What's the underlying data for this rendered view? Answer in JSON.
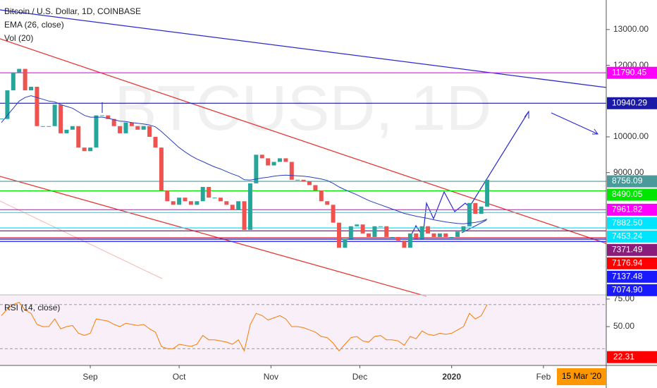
{
  "chart_data": [
    {
      "type": "candlestick",
      "title": "Bitcoin / U.S. Dollar, 1D, COINBASE",
      "watermark": "BTCUSD, 1D",
      "volume_label": "Vol (20)",
      "categories": [
        null,
        null,
        null,
        null,
        null,
        null,
        null,
        null,
        null,
        null,
        null,
        null,
        null,
        null,
        null,
        null,
        null,
        null,
        null,
        null,
        null,
        null,
        null,
        null,
        null,
        null,
        null,
        null,
        null,
        null,
        null,
        null,
        null,
        null,
        null,
        null,
        null,
        null,
        null,
        null,
        null,
        null,
        null,
        null,
        null,
        null,
        null,
        null,
        null,
        null,
        null,
        null,
        null,
        null,
        null,
        null,
        null,
        null,
        null,
        null,
        null,
        null,
        null,
        null,
        null,
        null,
        null,
        null,
        null,
        null,
        null,
        null,
        null,
        null,
        null,
        null,
        null,
        null,
        null,
        null,
        null,
        null,
        null
      ],
      "close": [
        10500,
        11300,
        11800,
        11900,
        11300,
        11400,
        10300,
        10300,
        10300,
        10900,
        10100,
        10200,
        10300,
        9700,
        9600,
        9700,
        10600,
        10600,
        10500,
        10300,
        10100,
        10400,
        10300,
        10200,
        10300,
        10000,
        9700,
        8500,
        8200,
        8100,
        8300,
        8200,
        8100,
        8200,
        8600,
        8300,
        8300,
        8200,
        8100,
        7950,
        8200,
        7400,
        8700,
        9500,
        9400,
        9200,
        9300,
        9400,
        9300,
        8800,
        8800,
        8750,
        8650,
        8500,
        8200,
        8100,
        7600,
        6900,
        7150,
        7500,
        7550,
        7300,
        7200,
        7500,
        7500,
        7200,
        7200,
        7100,
        6900,
        7300,
        7150,
        7500,
        7300,
        7200,
        7300,
        7200,
        7200,
        7350,
        7500,
        8150,
        7850,
        8050,
        8800
      ],
      "up_color": "#26a69a",
      "down_color": "#ef5350",
      "ema": {
        "name": "EMA (26, close)",
        "color": "#2a3fbf",
        "values": [
          10400,
          10600,
          10800,
          11000,
          11100,
          11150,
          11100,
          11050,
          11000,
          10980,
          10900,
          10850,
          10800,
          10700,
          10600,
          10550,
          10550,
          10550,
          10520,
          10480,
          10440,
          10430,
          10400,
          10380,
          10360,
          10330,
          10280,
          10150,
          10000,
          9850,
          9700,
          9580,
          9470,
          9380,
          9310,
          9230,
          9160,
          9100,
          9030,
          8960,
          8900,
          8800,
          8790,
          8820,
          8850,
          8870,
          8900,
          8920,
          8930,
          8920,
          8910,
          8900,
          8880,
          8850,
          8820,
          8780,
          8700,
          8600,
          8520,
          8450,
          8380,
          8300,
          8220,
          8160,
          8100,
          8040,
          7980,
          7920,
          7860,
          7820,
          7780,
          7750,
          7720,
          7680,
          7650,
          7620,
          7600,
          7580,
          7570,
          7590,
          7610,
          7640,
          7700
        ]
      },
      "xlim": [
        -0.24,
        102.1
      ],
      "xticks": [
        {
          "value": 15,
          "label": "Sep"
        },
        {
          "value": 30,
          "label": "Oct"
        },
        {
          "value": 45.5,
          "label": "Nov"
        },
        {
          "value": 60.5,
          "label": "Dec"
        },
        {
          "value": 76,
          "label": "2020"
        },
        {
          "value": 91.5,
          "label": "Feb"
        }
      ],
      "cursor_date": "15 Mar '20",
      "ylim": [
        5542,
        13826
      ],
      "yticks": [
        {
          "value": 13000,
          "label": "13000.00"
        },
        {
          "value": 12000,
          "label": "12000.00"
        },
        {
          "value": 10000,
          "label": "10000.00"
        },
        {
          "value": 9000,
          "label": "9000.00"
        }
      ],
      "levels": [
        {
          "value": 11790.45,
          "label": "11790.45",
          "color": "#ff00ff"
        },
        {
          "value": 10940.29,
          "label": "10940.29",
          "color": "#1a1aa6"
        },
        {
          "value": 8756.09,
          "label": "8756.09",
          "color": "#4a9a9a"
        },
        {
          "value": 8490.05,
          "label": "8490.05",
          "color": "#00e600"
        },
        {
          "value": 7961.82,
          "label": "7961.82",
          "color": "#ff00ff"
        },
        {
          "value": 7882.5,
          "label": "7882.50",
          "color": "#00e5ff"
        },
        {
          "value": 7453.24,
          "label": "7453.24",
          "color": "#00e5ff"
        },
        {
          "value": 7371.49,
          "label": "7371.49",
          "color": "#8a1c7c"
        },
        {
          "value": 7176.94,
          "label": "7176.94",
          "color": "#ff0000"
        },
        {
          "value": 7137.48,
          "label": "7137.48",
          "color": "#1a1aff"
        },
        {
          "value": 7074.9,
          "label": "7074.90",
          "color": "#1a1aff"
        }
      ]
    },
    {
      "type": "line",
      "title": "RSI (14, close)",
      "color": "#f57c00",
      "values": [
        60,
        66,
        70,
        72,
        65,
        62,
        52,
        50,
        50,
        57,
        48,
        50,
        51,
        44,
        42,
        44,
        57,
        56,
        55,
        52,
        50,
        53,
        52,
        51,
        52,
        48,
        45,
        32,
        30,
        30,
        34,
        33,
        32,
        34,
        42,
        38,
        38,
        37,
        36,
        34,
        38,
        28,
        52,
        62,
        60,
        56,
        58,
        60,
        57,
        50,
        50,
        49,
        47,
        45,
        41,
        40,
        35,
        28,
        34,
        40,
        41,
        37,
        36,
        41,
        42,
        38,
        38,
        37,
        33,
        41,
        39,
        46,
        43,
        42,
        44,
        43,
        44,
        47,
        50,
        62,
        57,
        60,
        70
      ],
      "ylim": [
        16.7,
        78.8
      ],
      "yticks": [
        {
          "value": 75,
          "label": "75.00"
        },
        {
          "value": 50,
          "label": "50.00"
        }
      ],
      "band": [
        30,
        70
      ],
      "marker": {
        "value": 22.31,
        "label": "22.31",
        "color": "#ff0000"
      }
    }
  ]
}
